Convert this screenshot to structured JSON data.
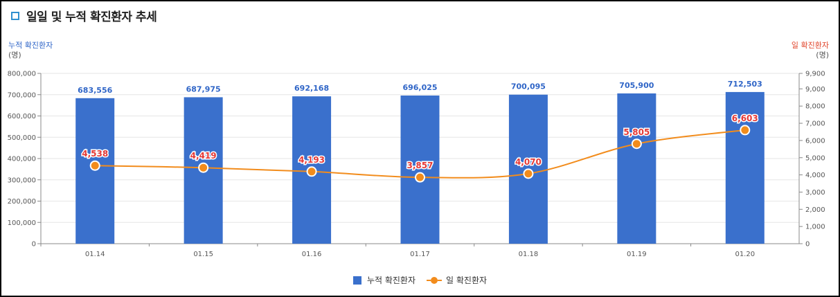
{
  "title": "일일 및 누적 확진환자 추세",
  "colors": {
    "bar": "#3a70cc",
    "line": "#f28c1c",
    "left_axis_name": "#2f65c7",
    "right_axis_name": "#e0452b",
    "bar_label": "#2f65c7",
    "line_label": "#e53935"
  },
  "chart_data": {
    "type": "bar+line",
    "categories": [
      "01.14",
      "01.15",
      "01.16",
      "01.17",
      "01.18",
      "01.19",
      "01.20"
    ],
    "series": [
      {
        "name": "누적 확진환자",
        "type": "bar",
        "axis": "left",
        "values": [
          683556,
          687975,
          692168,
          696025,
          700095,
          705900,
          712503
        ],
        "labels": [
          "683,556",
          "687,975",
          "692,168",
          "696,025",
          "700,095",
          "705,900",
          "712,503"
        ]
      },
      {
        "name": "일 확진환자",
        "type": "line",
        "axis": "right",
        "values": [
          4538,
          4419,
          4193,
          3857,
          4070,
          5805,
          6603
        ],
        "labels": [
          "4,538",
          "4,419",
          "4,193",
          "3,857",
          "4,070",
          "5,805",
          "6,603"
        ]
      }
    ],
    "left_axis": {
      "label": "누적 확진환자",
      "unit": "(명)",
      "ylim": [
        0,
        800000
      ],
      "ticks": [
        "0",
        "100,000",
        "200,000",
        "300,000",
        "400,000",
        "500,000",
        "600,000",
        "700,000",
        "800,000"
      ]
    },
    "right_axis": {
      "label": "일 확진환자",
      "unit": "(명)",
      "ylim": [
        0,
        9900
      ],
      "ticks": [
        "0",
        "1,000",
        "2,000",
        "3,000",
        "4,000",
        "5,000",
        "6,000",
        "7,000",
        "8,000",
        "9,000",
        "9,900"
      ]
    },
    "grid": true,
    "legend_position": "bottom-center"
  }
}
